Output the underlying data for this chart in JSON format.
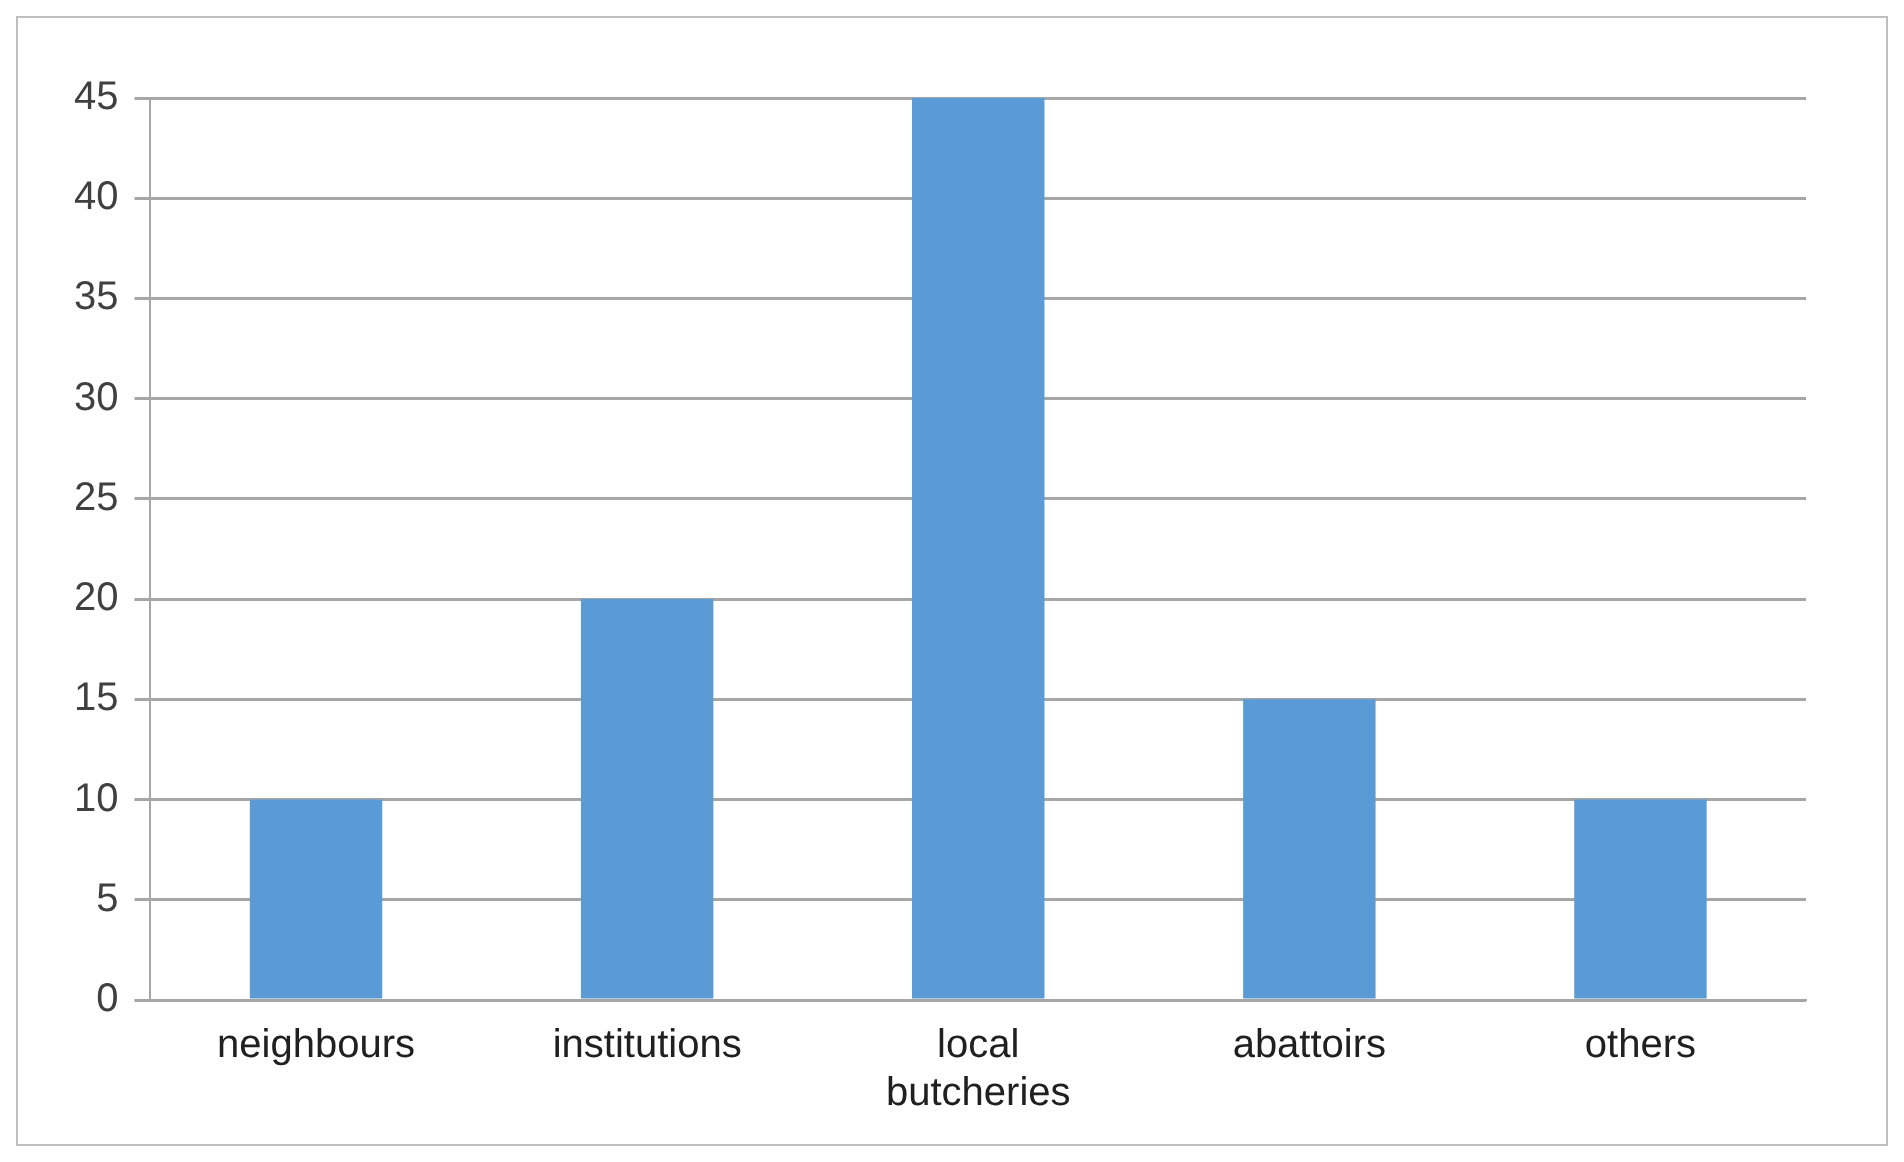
{
  "chart_data": {
    "type": "bar",
    "categories": [
      "neighbours",
      "institutions",
      "local butcheries",
      "abattoirs",
      "others"
    ],
    "values": [
      10,
      20,
      45,
      15,
      10
    ],
    "color": "#5b9bd5",
    "ylim": [
      0,
      45
    ],
    "yticks": [
      0,
      5,
      10,
      15,
      20,
      25,
      30,
      35,
      40,
      45
    ],
    "grid": "y",
    "legend": false
  }
}
